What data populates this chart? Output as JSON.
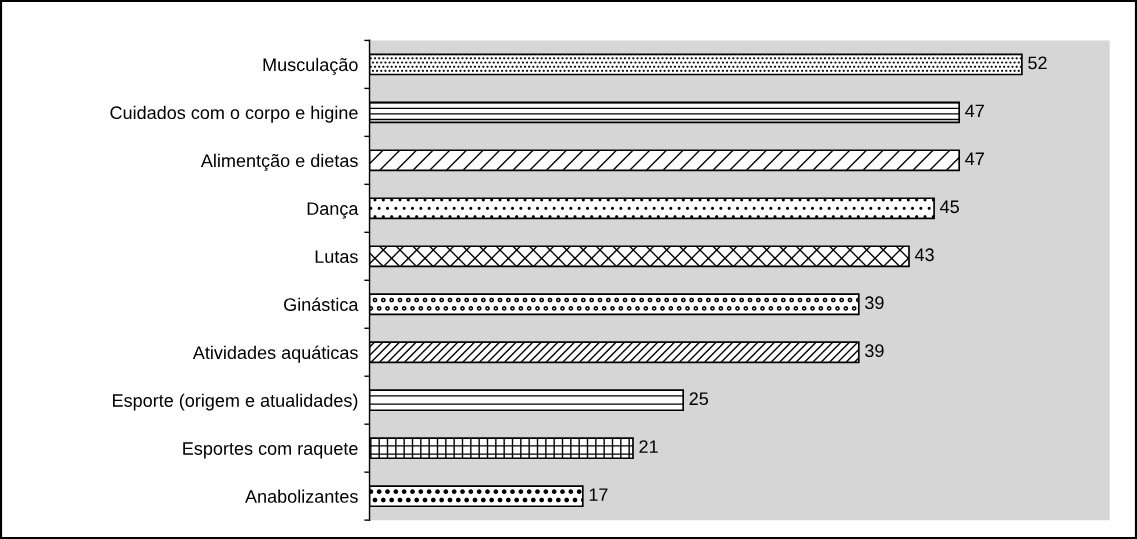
{
  "chart_data": {
    "type": "bar",
    "orientation": "horizontal",
    "categories": [
      "Musculação",
      "Cuidados com o corpo e higine",
      "Alimentção e dietas",
      "Dança",
      "Lutas",
      "Ginástica",
      "Atividades aquáticas",
      "Esporte (origem e atualidades)",
      "Esportes com raquete",
      "Anabolizantes"
    ],
    "values": [
      52,
      47,
      47,
      45,
      43,
      39,
      39,
      25,
      21,
      17
    ],
    "color": "#000000",
    "xlim": [
      0,
      59
    ],
    "data_labels": true,
    "tick_labels": "y",
    "grid": false,
    "legend": false
  }
}
